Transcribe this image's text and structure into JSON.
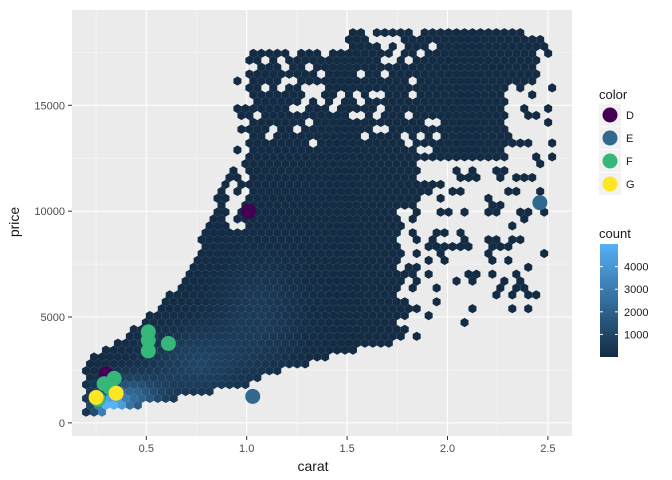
{
  "chart_data": {
    "type": "scatter",
    "background": "#EBEBEB",
    "grid": true,
    "legend_position": "right",
    "xlabel": "carat",
    "ylabel": "price",
    "xlim": [
      0.13,
      2.62
    ],
    "ylim": [
      -620,
      19500
    ],
    "x_ticks": [
      0.5,
      1.0,
      1.5,
      2.0,
      2.5
    ],
    "x_tick_labels": [
      "0.5",
      "1.0",
      "1.5",
      "2.0",
      "2.5"
    ],
    "y_ticks": [
      0,
      5000,
      10000,
      15000
    ],
    "y_tick_labels": [
      "0",
      "5000",
      "10000",
      "15000"
    ],
    "hexbin": {
      "description_counts": "hexagonal binning of all diamonds, fill by count",
      "count_range": [
        1,
        5000
      ],
      "gradient": [
        "#132B43",
        "#56B1F7"
      ],
      "dense_regions": [
        {
          "x": [
            0.3,
            0.42
          ],
          "y": [
            500,
            1300
          ],
          "count": 4800
        },
        {
          "x": [
            0.25,
            0.7
          ],
          "y": [
            400,
            3000
          ],
          "count": 1500
        },
        {
          "x": [
            0.7,
            1.1
          ],
          "y": [
            2000,
            5500
          ],
          "count": 700
        },
        {
          "x": [
            1.0,
            1.2
          ],
          "y": [
            3000,
            9000
          ],
          "count": 500
        }
      ]
    },
    "legend_count": {
      "title": "count",
      "breaks": [
        1000,
        2000,
        3000,
        4000
      ],
      "labels": [
        "1000",
        "2000",
        "3000",
        "4000"
      ]
    },
    "legend_color": {
      "title": "color",
      "entries": [
        {
          "label": "D",
          "color": "#440154"
        },
        {
          "label": "E",
          "color": "#31688E"
        },
        {
          "label": "F",
          "color": "#35B779"
        },
        {
          "label": "G",
          "color": "#FDE725"
        }
      ]
    },
    "points": [
      {
        "x": 0.3,
        "y": 2300,
        "color": "D"
      },
      {
        "x": 1.01,
        "y": 10000,
        "color": "D"
      },
      {
        "x": 1.03,
        "y": 1250,
        "color": "E"
      },
      {
        "x": 2.46,
        "y": 10400,
        "color": "E"
      },
      {
        "x": 0.51,
        "y": 4300,
        "color": "F"
      },
      {
        "x": 0.51,
        "y": 3900,
        "color": "F"
      },
      {
        "x": 0.51,
        "y": 3400,
        "color": "F"
      },
      {
        "x": 0.61,
        "y": 3750,
        "color": "F"
      },
      {
        "x": 0.34,
        "y": 2100,
        "color": "F"
      },
      {
        "x": 0.29,
        "y": 1850,
        "color": "F"
      },
      {
        "x": 0.32,
        "y": 1650,
        "color": "F"
      },
      {
        "x": 0.26,
        "y": 1100,
        "color": "F"
      },
      {
        "x": 0.35,
        "y": 1400,
        "color": "G"
      },
      {
        "x": 0.25,
        "y": 1200,
        "color": "G"
      }
    ]
  }
}
